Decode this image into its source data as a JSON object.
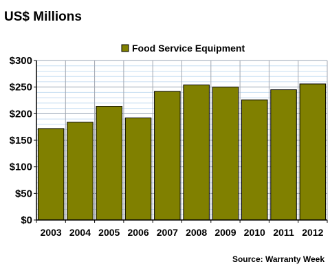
{
  "chart_data": {
    "type": "bar",
    "title": "US$ Millions",
    "source": "Source: Warranty Week",
    "categories": [
      "2003",
      "2004",
      "2005",
      "2006",
      "2007",
      "2008",
      "2009",
      "2010",
      "2011",
      "2012"
    ],
    "series": [
      {
        "name": "Food Service Equipment",
        "values": [
          172,
          184,
          214,
          192,
          242,
          254,
          250,
          226,
          245,
          256
        ],
        "color": "#808000"
      }
    ],
    "xlabel": "",
    "ylabel": "",
    "ylim": [
      0,
      300
    ],
    "yticks": [
      0,
      50,
      100,
      150,
      200,
      250,
      300
    ],
    "ytick_labels": [
      "$0",
      "$50",
      "$100",
      "$150",
      "$200",
      "$250",
      "$300"
    ],
    "minor_grid_step": 10,
    "grid": true,
    "legend_position": "top-center",
    "colors": {
      "plot_background": "#ffffff",
      "major_grid": "#9aa5b5",
      "minor_grid": "#c6def2",
      "vertical_grid": "#a0a6b0",
      "bar_stroke": "#000000"
    }
  }
}
